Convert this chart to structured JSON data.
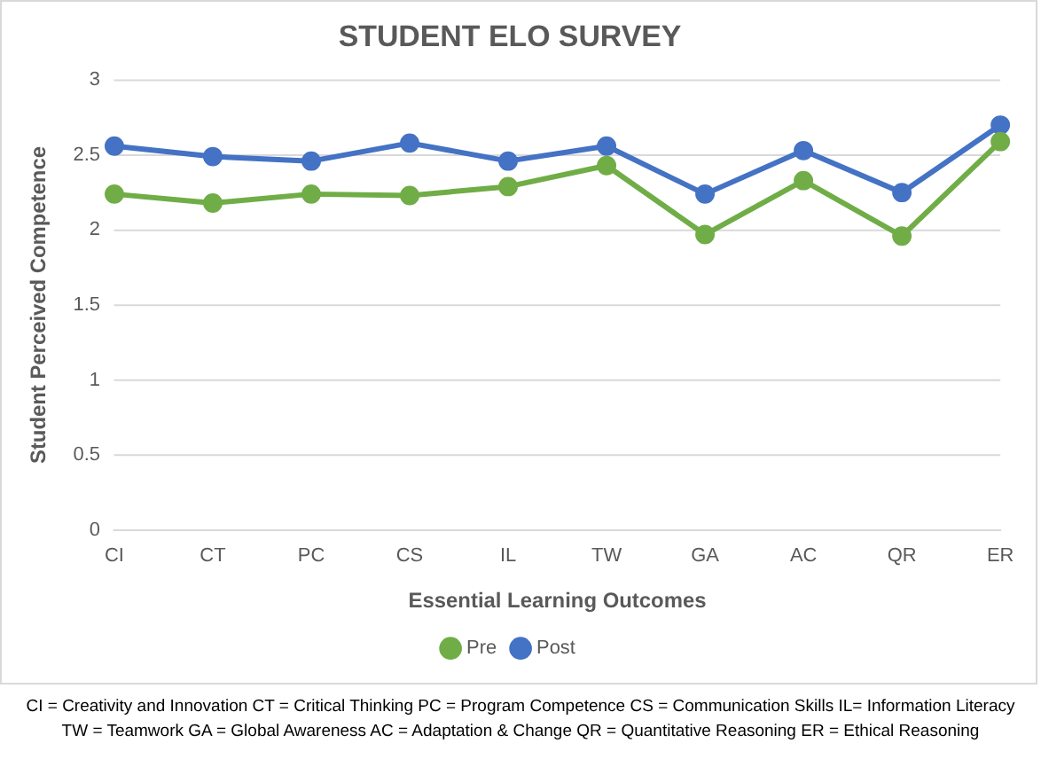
{
  "chart_data": {
    "type": "line",
    "title": "STUDENT ELO SURVEY",
    "xlabel": "Essential Learning Outcomes",
    "ylabel": "Student Perceived Competence",
    "categories": [
      "CI",
      "CT",
      "PC",
      "CS",
      "IL",
      "TW",
      "GA",
      "AC",
      "QR",
      "ER"
    ],
    "series": [
      {
        "name": "Pre",
        "color": "#70ad47",
        "values": [
          2.24,
          2.18,
          2.24,
          2.23,
          2.29,
          2.43,
          1.97,
          2.33,
          1.96,
          2.59
        ]
      },
      {
        "name": "Post",
        "color": "#4472c4",
        "values": [
          2.56,
          2.49,
          2.46,
          2.58,
          2.46,
          2.56,
          2.24,
          2.53,
          2.25,
          2.7
        ]
      }
    ],
    "ylim": [
      0,
      3
    ],
    "yticks": [
      0,
      0.5,
      1,
      1.5,
      2,
      2.5,
      3
    ],
    "grid": "y",
    "legend": "bottom",
    "marker": "circle",
    "line_style": "solid",
    "annotations": [
      "CI = Creativity and Innovation  CT = Critical Thinking  PC = Program Competence   CS = Communication Skills  IL= Information Literacy",
      "TW = Teamwork  GA = Global Awareness  AC = Adaptation & Change  QR = Quantitative Reasoning  ER = Ethical Reasoning"
    ]
  }
}
